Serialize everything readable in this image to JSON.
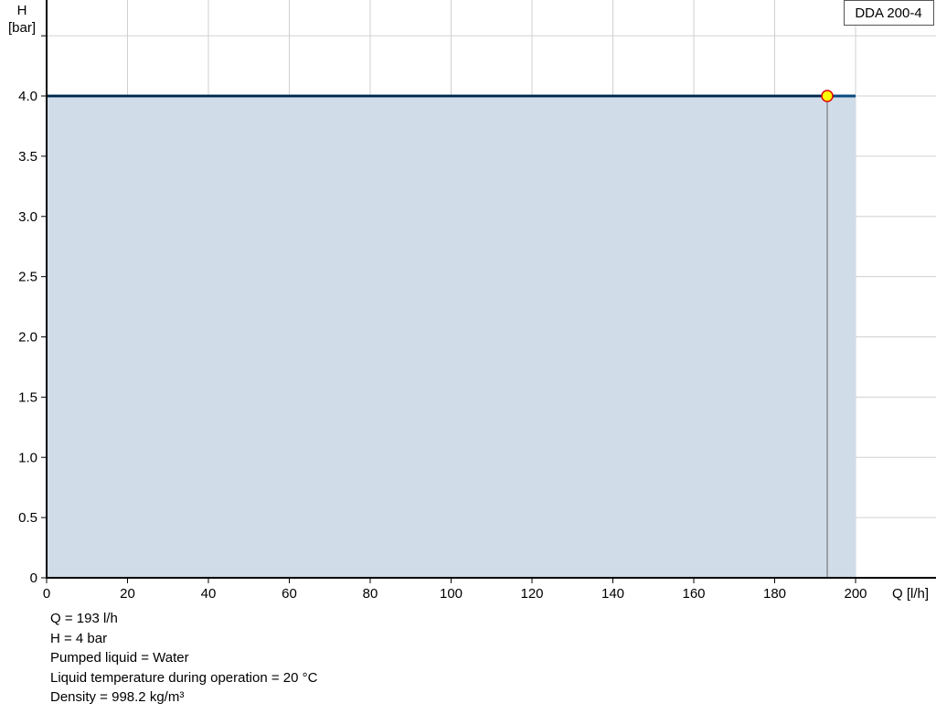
{
  "chart_data": {
    "type": "area",
    "legend": "DDA 200-4",
    "legend_placement": "top-right",
    "xlabel": "Q [l/h]",
    "ylabel_line1": "H",
    "ylabel_line2": "[bar]",
    "xlim": [
      0,
      220
    ],
    "ylim": [
      0,
      4.8
    ],
    "grid": true,
    "x_ticks": [
      0,
      20,
      40,
      60,
      80,
      100,
      120,
      140,
      160,
      180,
      200
    ],
    "y_ticks": [
      {
        "v": 0,
        "label": "0"
      },
      {
        "v": 0.5,
        "label": "0.5"
      },
      {
        "v": 1,
        "label": "1.0"
      },
      {
        "v": 1.5,
        "label": "1.5"
      },
      {
        "v": 2,
        "label": "2.0"
      },
      {
        "v": 2.5,
        "label": "2.5"
      },
      {
        "v": 3,
        "label": "3.0"
      },
      {
        "v": 3.5,
        "label": "3.5"
      },
      {
        "v": 4,
        "label": "4.0"
      }
    ],
    "series": [
      {
        "x": [
          0,
          200
        ],
        "y": [
          4,
          4
        ]
      }
    ],
    "duty_point": {
      "x": 193,
      "y": 4
    },
    "colors": {
      "curve": "#0a4a80",
      "fill": "#d0dce8",
      "point_fill": "#ffff00",
      "point_stroke": "#e00000",
      "grid": "#d0d0d0"
    }
  },
  "info": [
    "Q = 193 l/h",
    "H = 4 bar",
    "Pumped liquid = Water",
    "Liquid temperature during operation = 20 °C",
    "Density = 998.2 kg/m³"
  ]
}
